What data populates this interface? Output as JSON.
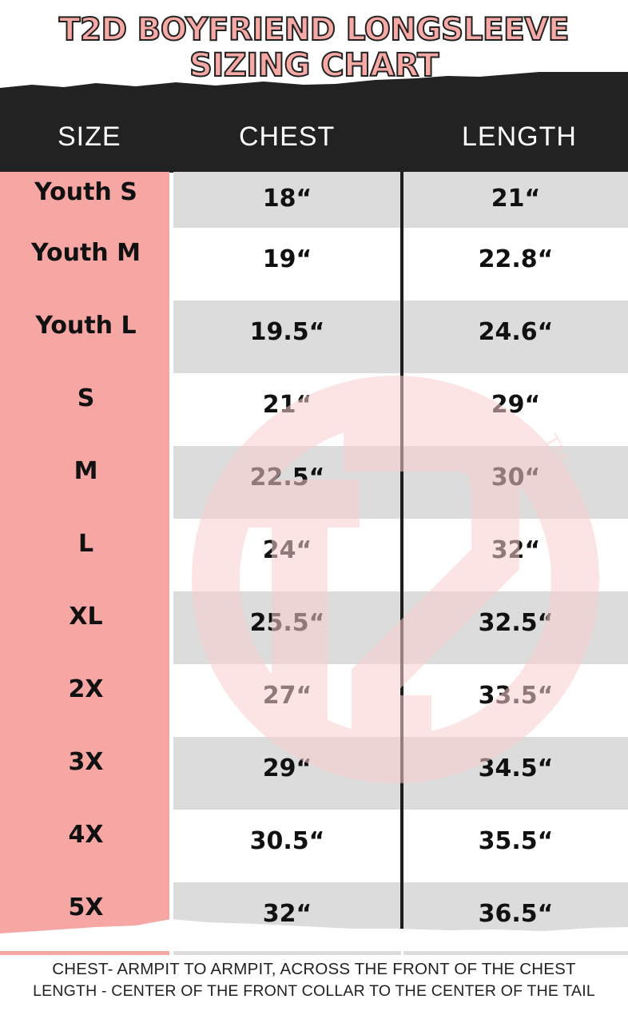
{
  "title": {
    "line1": "T2D BOYFRIEND LONGSLEEVE",
    "line2": "SIZING CHART"
  },
  "colors": {
    "pink": "#f6a7a4",
    "header": "#222222",
    "stripe": "#dcdcdc",
    "watermark": "#f9c9c7"
  },
  "watermark": {
    "logo": "T2D",
    "mark": "TM"
  },
  "headers": [
    "SIZE",
    "CHEST",
    "LENGTH"
  ],
  "rows": [
    {
      "size": "Youth S",
      "chest": "18“",
      "length": "21“"
    },
    {
      "size": "Youth M",
      "chest": "19“",
      "length": "22.8“"
    },
    {
      "size": "Youth L",
      "chest": "19.5“",
      "length": "24.6“"
    },
    {
      "size": "S",
      "chest": "21“",
      "length": "29“"
    },
    {
      "size": "M",
      "chest": "22.5“",
      "length": "30“"
    },
    {
      "size": "L",
      "chest": "24“",
      "length": "32“"
    },
    {
      "size": "XL",
      "chest": "25.5“",
      "length": "32.5“"
    },
    {
      "size": "2X",
      "chest": "27“",
      "length": "33.5“"
    },
    {
      "size": "3X",
      "chest": "29“",
      "length": "34.5“"
    },
    {
      "size": "4X",
      "chest": "30.5“",
      "length": "35.5“"
    },
    {
      "size": "5X",
      "chest": "32“",
      "length": "36.5“"
    }
  ],
  "notes": [
    "CHEST- ARMPIT TO ARMPIT, ACROSS THE FRONT OF THE CHEST",
    "LENGTH - CENTER OF THE FRONT COLLAR TO THE CENTER OF THE TAIL"
  ]
}
